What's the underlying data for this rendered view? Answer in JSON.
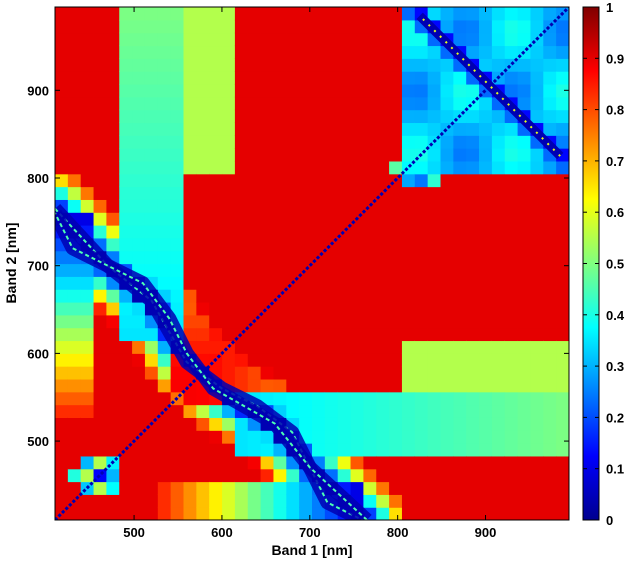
{
  "chart_data": {
    "type": "heatmap",
    "title": "",
    "xlabel": "Band 1 [nm]",
    "ylabel": "Band 2 [nm]",
    "xlim": [
      410,
      995
    ],
    "ylim": [
      410,
      995
    ],
    "xticks": [
      500,
      600,
      700,
      800,
      900
    ],
    "yticks": [
      500,
      600,
      700,
      800,
      900
    ],
    "colormap": "jet",
    "colorbar": {
      "range": [
        0,
        1
      ],
      "ticks": [
        0,
        0.1,
        0.2,
        0.3,
        0.4,
        0.5,
        0.6,
        0.7,
        0.8,
        0.9,
        1
      ],
      "tick_labels": [
        "0",
        "0.1",
        "0.2",
        "0.3",
        "0.4",
        "0.5",
        "0.6",
        "0.7",
        "0.8",
        "0.9",
        "1"
      ]
    },
    "grid": false,
    "symmetric": true,
    "diagonal_value": 0.05,
    "features": [
      {
        "kind": "dark_curve",
        "points": [
          [
            410,
            765
          ],
          [
            470,
            700
          ],
          [
            520,
            660
          ],
          [
            560,
            590
          ],
          [
            600,
            560
          ],
          [
            640,
            540
          ],
          [
            680,
            510
          ],
          [
            720,
            430
          ],
          [
            760,
            410
          ]
        ],
        "value": 0.05
      },
      {
        "kind": "low_block",
        "x_range": [
          805,
          995
        ],
        "y_range": [
          805,
          995
        ],
        "value": 0.3
      },
      {
        "kind": "dark_spot",
        "center": [
          820,
          810
        ],
        "value": 0.05
      },
      {
        "kind": "dark_ring",
        "center": [
          455,
          465
        ],
        "value": 0.05
      },
      {
        "kind": "high_region",
        "description": "band 2 620-800 for band 1 600-800",
        "value": 0.85
      }
    ]
  }
}
